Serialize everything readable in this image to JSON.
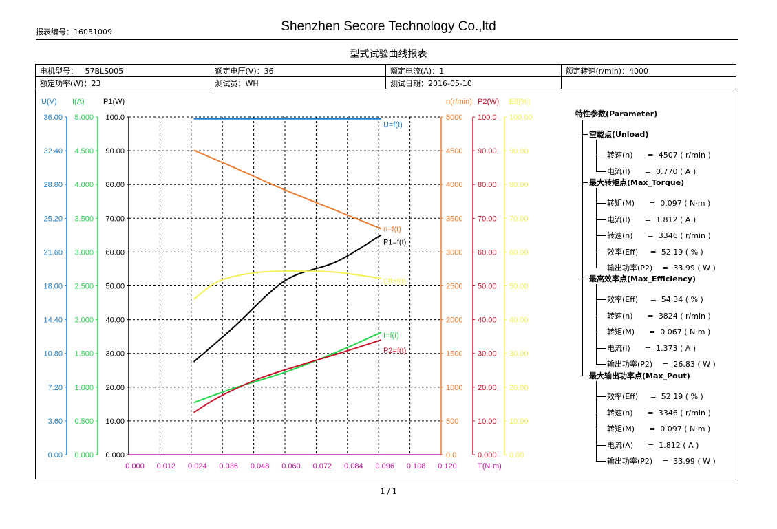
{
  "header": {
    "report_no_label": "报表编号：",
    "report_no": "16051009",
    "company": "Shenzhen Secore Technology Co.,ltd",
    "title": "型式试验曲线报表",
    "page": "1 / 1"
  },
  "info_rows": [
    [
      {
        "label": "电机型号：",
        "value": "57BLS005"
      },
      {
        "label": "额定电压(V)：",
        "value": "36"
      },
      {
        "label": "额定电流(A)：",
        "value": "1"
      },
      {
        "label": "额定转速(r/min)：",
        "value": "4000"
      }
    ],
    [
      {
        "label": "额定功率(W)：",
        "value": "23"
      },
      {
        "label": "测试员：",
        "value": "WH"
      },
      {
        "label": "测试日期：",
        "value": "2016-05-10"
      },
      {
        "label": "",
        "value": ""
      }
    ]
  ],
  "colors": {
    "U": "#1e7fd0",
    "I": "#22d64a",
    "P1": "#000000",
    "n": "#ed7d31",
    "P2": "#c8142a",
    "Eff": "#f5f056",
    "T": "#c0119e"
  },
  "chart_data": {
    "type": "line",
    "x": {
      "label": "T(N·m)",
      "min": 0,
      "max": 0.12,
      "ticks": [
        "0.000",
        "0.012",
        "0.024",
        "0.036",
        "0.048",
        "0.060",
        "0.072",
        "0.084",
        "0.096",
        "0.108",
        "0.120"
      ]
    },
    "axes": [
      {
        "key": "U",
        "label": "U(V)",
        "min": 0,
        "max": 36,
        "ticks": [
          "0.00",
          "3.60",
          "7.20",
          "10.80",
          "14.40",
          "18.00",
          "21.60",
          "25.20",
          "28.80",
          "32.40",
          "36.00"
        ]
      },
      {
        "key": "I",
        "label": "I(A)",
        "min": 0,
        "max": 5,
        "ticks": [
          "0.000",
          "0.500",
          "1.000",
          "1.500",
          "2.000",
          "2.500",
          "3.000",
          "3.500",
          "4.000",
          "4.500",
          "5.000"
        ]
      },
      {
        "key": "P1",
        "label": "P1(W)",
        "min": 0,
        "max": 100,
        "ticks": [
          "0.000",
          "10.00",
          "20.00",
          "30.00",
          "40.00",
          "50.00",
          "60.00",
          "70.00",
          "80.00",
          "90.00",
          "100.0"
        ]
      },
      {
        "key": "n",
        "label": "n(r/min)",
        "min": 0,
        "max": 5000,
        "ticks": [
          "0.0",
          "500",
          "1000",
          "1500",
          "2000",
          "2500",
          "3000",
          "3500",
          "4000",
          "4500",
          "5000"
        ]
      },
      {
        "key": "P2",
        "label": "P2(W)",
        "min": 0,
        "max": 100,
        "ticks": [
          "0.000",
          "10.00",
          "20.00",
          "30.00",
          "40.00",
          "50.00",
          "60.00",
          "70.00",
          "80.00",
          "90.00",
          "100.0"
        ]
      },
      {
        "key": "Eff",
        "label": "Eff(%)",
        "min": 0,
        "max": 100,
        "ticks": [
          "0.00",
          "10.00",
          "20.00",
          "30.00",
          "40.00",
          "50.00",
          "60.00",
          "70.00",
          "80.00",
          "90.00",
          "100.00"
        ]
      }
    ],
    "series": [
      {
        "name": "U=f(t)",
        "axis": "U",
        "points": [
          [
            0.025,
            35.8
          ],
          [
            0.097,
            35.8
          ]
        ]
      },
      {
        "name": "n=f(t)",
        "axis": "n",
        "points": [
          [
            0.025,
            4507
          ],
          [
            0.04,
            4260
          ],
          [
            0.06,
            3920
          ],
          [
            0.08,
            3610
          ],
          [
            0.097,
            3346
          ]
        ]
      },
      {
        "name": "P1=f(t)",
        "axis": "P1",
        "points": [
          [
            0.025,
            27.5
          ],
          [
            0.04,
            37.5
          ],
          [
            0.06,
            51.5
          ],
          [
            0.08,
            57.2
          ],
          [
            0.097,
            65.1
          ]
        ]
      },
      {
        "name": "Eff=f(t)",
        "axis": "Eff",
        "points": [
          [
            0.025,
            46
          ],
          [
            0.035,
            51.5
          ],
          [
            0.05,
            54
          ],
          [
            0.067,
            54.34
          ],
          [
            0.08,
            54
          ],
          [
            0.097,
            52.19
          ]
        ]
      },
      {
        "name": "I=f(t)",
        "axis": "I",
        "points": [
          [
            0.025,
            0.77
          ],
          [
            0.04,
            0.98
          ],
          [
            0.06,
            1.22
          ],
          [
            0.08,
            1.52
          ],
          [
            0.097,
            1.812
          ]
        ]
      },
      {
        "name": "P2=f(t)",
        "axis": "P2",
        "points": [
          [
            0.025,
            12.5
          ],
          [
            0.035,
            17.2
          ],
          [
            0.05,
            22.5
          ],
          [
            0.067,
            26.8
          ],
          [
            0.08,
            29.8
          ],
          [
            0.097,
            33.99
          ]
        ]
      }
    ]
  },
  "params": {
    "title": "特性参数(Parameter)",
    "groups": [
      {
        "title": "空载点(Unload)",
        "items": [
          "转速(n)      =  4507 ( r/min )",
          "电流(I)      =  0.770 ( A )"
        ]
      },
      {
        "title": "最大转矩点(Max_Torque)",
        "items": [
          "转矩(M)      =  0.097 ( N·m )",
          "电流(I)      =  1.812 ( A )",
          "转速(n)      =  3346 ( r/min )",
          "效率(Eff)     =  52.19 ( % )",
          "输出功率(P2)    =  33.99 ( W )"
        ]
      },
      {
        "title": "最高效率点(Max_Efficiency)",
        "items": [
          "效率(Eff)     =  54.34 ( % )",
          "转速(n)      =  3824 ( r/min )",
          "转矩(M)      =  0.067 ( N·m )",
          "电流(I)      =  1.373 ( A )",
          "输出功率(P2)    =  26.83 ( W )"
        ]
      },
      {
        "title": "最大输出功率点(Max_Pout)",
        "items": [
          "效率(Eff)     =  52.19 ( % )",
          "转速(n)      =  3346 ( r/min )",
          "转矩(M)      =  0.097 ( N·m )",
          "电流(A)      =  1.812 ( A )",
          "输出功率(P2)    =  33.99 ( W )"
        ]
      }
    ]
  }
}
